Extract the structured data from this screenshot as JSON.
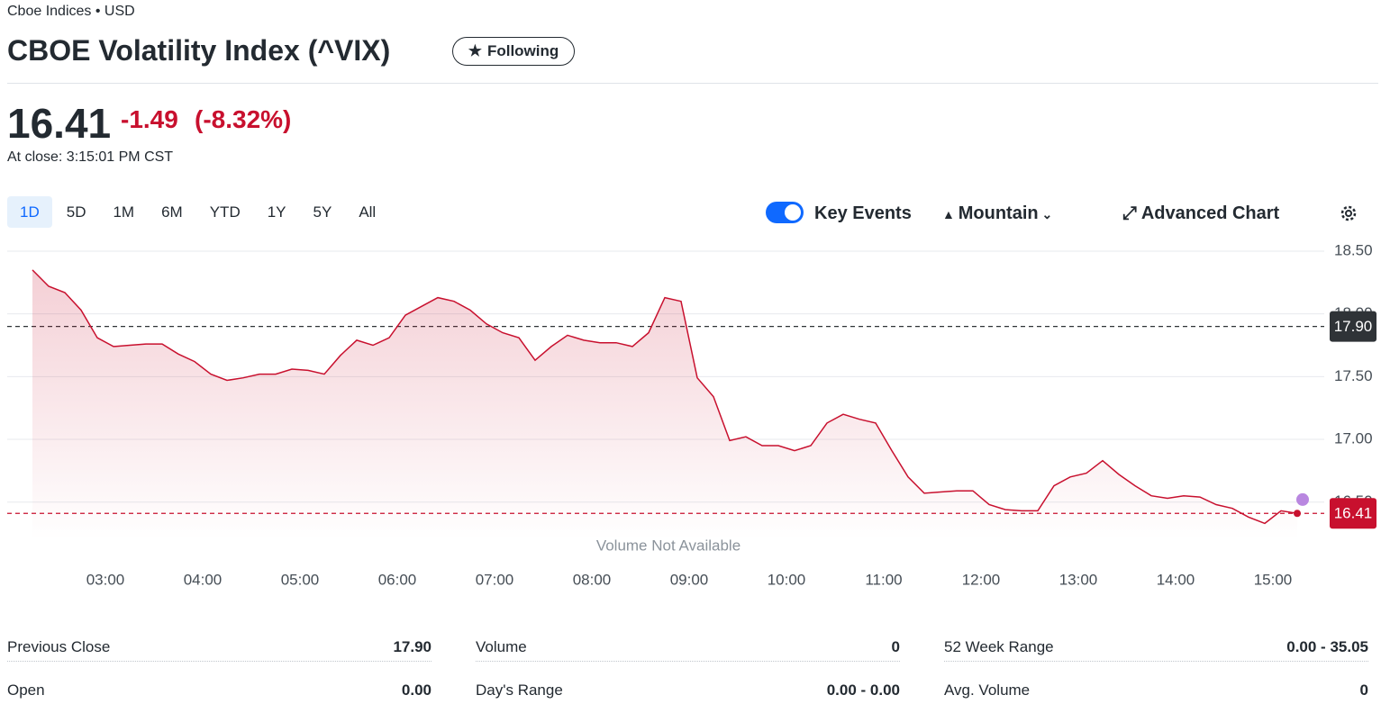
{
  "header": {
    "exchange": "Cboe Indices • USD",
    "title": "CBOE Volatility Index (^VIX)",
    "follow_button": "Following"
  },
  "quote": {
    "price": "16.41",
    "change": "-1.49",
    "change_percent": "(-8.32%)",
    "close_time": "At close: 3:15:01 PM CST"
  },
  "ranges": [
    "1D",
    "5D",
    "1M",
    "6M",
    "YTD",
    "1Y",
    "5Y",
    "All"
  ],
  "controls": {
    "key_events": "Key Events",
    "chart_type": "Mountain",
    "advanced": "Advanced Chart"
  },
  "chart_data": {
    "type": "area",
    "color": "#c8102e",
    "annotation": "Volume Not Available",
    "x": [
      "02:15",
      "02:25",
      "02:35",
      "02:45",
      "02:55",
      "03:05",
      "03:15",
      "03:25",
      "03:35",
      "03:45",
      "03:55",
      "04:05",
      "04:15",
      "04:25",
      "04:35",
      "04:45",
      "04:55",
      "05:05",
      "05:15",
      "05:25",
      "05:35",
      "05:45",
      "05:55",
      "06:05",
      "06:15",
      "06:25",
      "06:35",
      "06:45",
      "06:55",
      "07:05",
      "07:15",
      "07:25",
      "07:35",
      "07:45",
      "07:55",
      "08:05",
      "08:15",
      "08:25",
      "08:35",
      "08:45",
      "08:55",
      "09:05",
      "09:15",
      "09:25",
      "09:35",
      "09:45",
      "09:55",
      "10:05",
      "10:15",
      "10:25",
      "10:35",
      "10:45",
      "10:55",
      "11:05",
      "11:15",
      "11:25",
      "11:35",
      "11:45",
      "11:55",
      "12:05",
      "12:15",
      "12:25",
      "12:35",
      "12:45",
      "12:55",
      "13:05",
      "13:15",
      "13:25",
      "13:35",
      "13:45",
      "13:55",
      "14:05",
      "14:15",
      "14:25",
      "14:35",
      "14:45",
      "14:55",
      "15:05",
      "15:15"
    ],
    "values": [
      18.35,
      18.22,
      18.17,
      18.03,
      17.81,
      17.74,
      17.75,
      17.76,
      17.76,
      17.68,
      17.62,
      17.52,
      17.47,
      17.49,
      17.52,
      17.52,
      17.56,
      17.55,
      17.52,
      17.67,
      17.79,
      17.75,
      17.81,
      17.99,
      18.06,
      18.13,
      18.1,
      18.03,
      17.92,
      17.85,
      17.81,
      17.63,
      17.74,
      17.83,
      17.79,
      17.77,
      17.77,
      17.74,
      17.85,
      18.13,
      18.1,
      17.49,
      17.34,
      16.99,
      17.02,
      16.95,
      16.95,
      16.91,
      16.95,
      17.13,
      17.2,
      17.16,
      17.13,
      16.91,
      16.7,
      16.57,
      16.58,
      16.59,
      16.59,
      16.48,
      16.44,
      16.43,
      16.43,
      16.63,
      16.7,
      16.73,
      16.83,
      16.72,
      16.63,
      16.55,
      16.53,
      16.55,
      16.54,
      16.48,
      16.45,
      16.38,
      16.33,
      16.43,
      16.41
    ],
    "xlim": [
      "02:15",
      "15:25"
    ],
    "xticks": [
      "03:00",
      "04:00",
      "05:00",
      "06:00",
      "07:00",
      "08:00",
      "09:00",
      "10:00",
      "11:00",
      "12:00",
      "13:00",
      "14:00",
      "15:00"
    ],
    "ylim": [
      16.2,
      18.5
    ],
    "yticks": [
      {
        "value": 16.5,
        "label": "16.50"
      },
      {
        "value": 17,
        "label": "17.00"
      },
      {
        "value": 17.5,
        "label": "17.50"
      },
      {
        "value": 18,
        "label": "18.00"
      },
      {
        "value": 18.5,
        "label": "18.50"
      }
    ],
    "grid": true,
    "reference_lines": [
      {
        "value": 17.9,
        "label": "17.90",
        "color": "#2f3337"
      },
      {
        "value": 16.41,
        "label": "16.41",
        "color": "#c8102e"
      }
    ],
    "events": [
      {
        "x": "15:15",
        "value": 16.52,
        "color": "#b987e0"
      }
    ]
  },
  "stats": [
    [
      {
        "label": "Previous Close",
        "value": "17.90"
      },
      {
        "label": "Open",
        "value": "0.00"
      }
    ],
    [
      {
        "label": "Volume",
        "value": "0"
      },
      {
        "label": "Day's Range",
        "value": "0.00 - 0.00"
      }
    ],
    [
      {
        "label": "52 Week Range",
        "value": "0.00 - 35.05"
      },
      {
        "label": "Avg. Volume",
        "value": "0"
      }
    ]
  ]
}
